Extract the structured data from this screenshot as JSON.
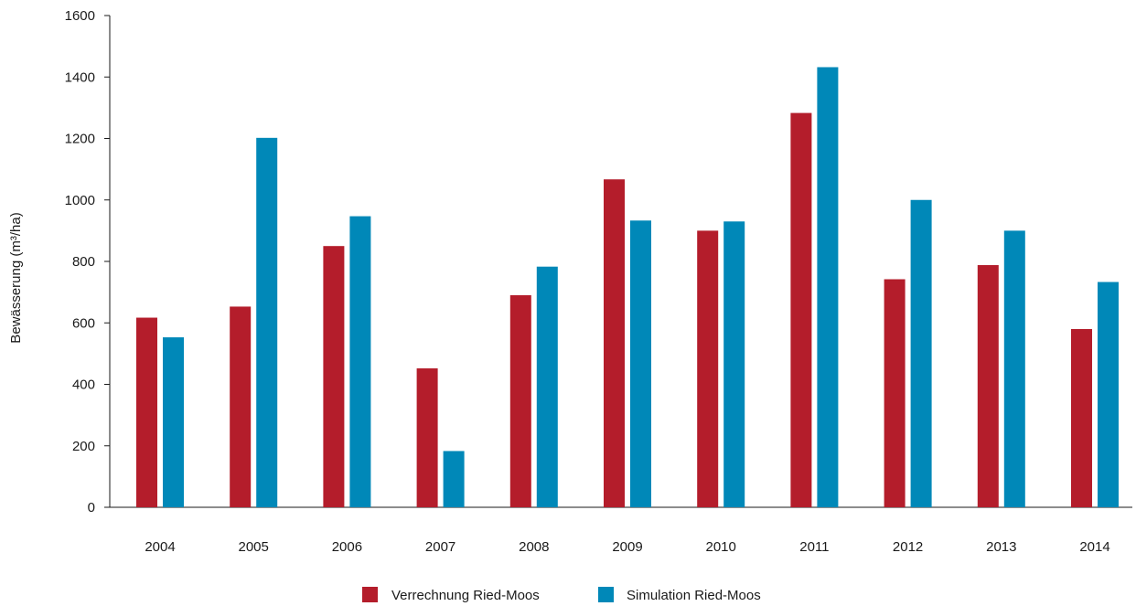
{
  "chart_data": {
    "type": "bar",
    "title": "",
    "xlabel": "",
    "ylabel": "Bewässerung (m³/ha)",
    "ylim": [
      0,
      1600
    ],
    "yticks": [
      0,
      200,
      400,
      600,
      800,
      1000,
      1200,
      1400,
      1600
    ],
    "grid": false,
    "legend_position": "bottom",
    "categories": [
      "2004",
      "2005",
      "2006",
      "2007",
      "2008",
      "2009",
      "2010",
      "2011",
      "2012",
      "2013",
      "2014"
    ],
    "series": [
      {
        "name": "Verrechnung Ried-Moos",
        "color": "#b41d2b",
        "values": [
          617,
          653,
          850,
          452,
          690,
          1067,
          900,
          1283,
          742,
          788,
          580
        ]
      },
      {
        "name": "Simulation Ried-Moos",
        "color": "#0088b8",
        "values": [
          553,
          1202,
          947,
          183,
          783,
          933,
          930,
          1432,
          1000,
          900,
          733
        ]
      }
    ]
  }
}
